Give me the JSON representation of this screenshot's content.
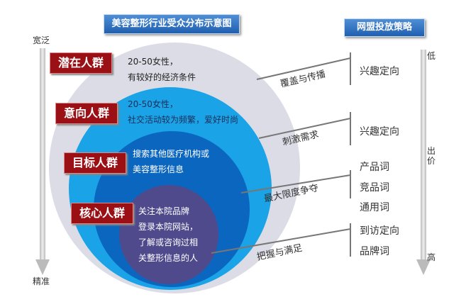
{
  "titles": {
    "left": "美容整形行业受众分布示意图",
    "right": "网盟投放策略"
  },
  "axis_left": {
    "top": "宽泛",
    "bottom": "精准"
  },
  "axis_right": {
    "top": "低",
    "middle": "出价",
    "bottom": "高"
  },
  "groups": [
    {
      "tag": "潜在人群",
      "desc": [
        "20-50女性，",
        "有较好的经济条件"
      ],
      "strategy": "覆盖与传播",
      "targets": [
        "兴趣定向"
      ]
    },
    {
      "tag": "意向人群",
      "desc": [
        "20-50女性，",
        "社交活动较为频繁，爱好时尚"
      ],
      "strategy": "刺激需求",
      "targets": [
        "兴趣定向"
      ]
    },
    {
      "tag": "目标人群",
      "desc": [
        "搜索其他医疗机构或",
        "美容整形信息"
      ],
      "strategy": "最大限度争夺",
      "targets": [
        "产品词",
        "竞品词",
        "通用词"
      ]
    },
    {
      "tag": "核心人群",
      "desc": [
        "关注本院品牌",
        "登录本院网站，",
        "了解或咨询过相",
        "关整形信息的人"
      ],
      "strategy": "把握与满足",
      "targets": [
        "到访定向",
        "品牌词"
      ]
    }
  ],
  "colors": {
    "outer": "#dcdce6",
    "ring2": "#1aa3e6",
    "ring3": "#0b66bf",
    "core": "#4f4a8c",
    "tag": "#9b1015"
  }
}
